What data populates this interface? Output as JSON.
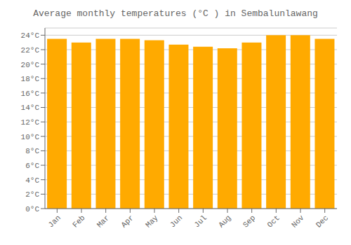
{
  "chart_data": {
    "type": "bar",
    "title": "Average monthly temperatures (°C ) in Sembalunlawang",
    "categories": [
      "Jan",
      "Feb",
      "Mar",
      "Apr",
      "May",
      "Jun",
      "Jul",
      "Aug",
      "Sep",
      "Oct",
      "Nov",
      "Dec"
    ],
    "values": [
      23.5,
      23.0,
      23.5,
      23.5,
      23.3,
      22.7,
      22.4,
      22.2,
      23.0,
      24.0,
      24.0,
      23.5
    ],
    "color": "#FFAA00",
    "ylim": [
      0,
      25
    ],
    "yticks": [
      {
        "value": 0,
        "label": "0°C"
      },
      {
        "value": 2,
        "label": "2°C"
      },
      {
        "value": 4,
        "label": "4°C"
      },
      {
        "value": 6,
        "label": "6°C"
      },
      {
        "value": 8,
        "label": "8°C"
      },
      {
        "value": 10,
        "label": "10°C"
      },
      {
        "value": 12,
        "label": "12°C"
      },
      {
        "value": 14,
        "label": "14°C"
      },
      {
        "value": 16,
        "label": "16°C"
      },
      {
        "value": 18,
        "label": "18°C"
      },
      {
        "value": 20,
        "label": "20°C"
      },
      {
        "value": 22,
        "label": "22°C"
      },
      {
        "value": 24,
        "label": "24°C"
      }
    ],
    "grid": true
  }
}
